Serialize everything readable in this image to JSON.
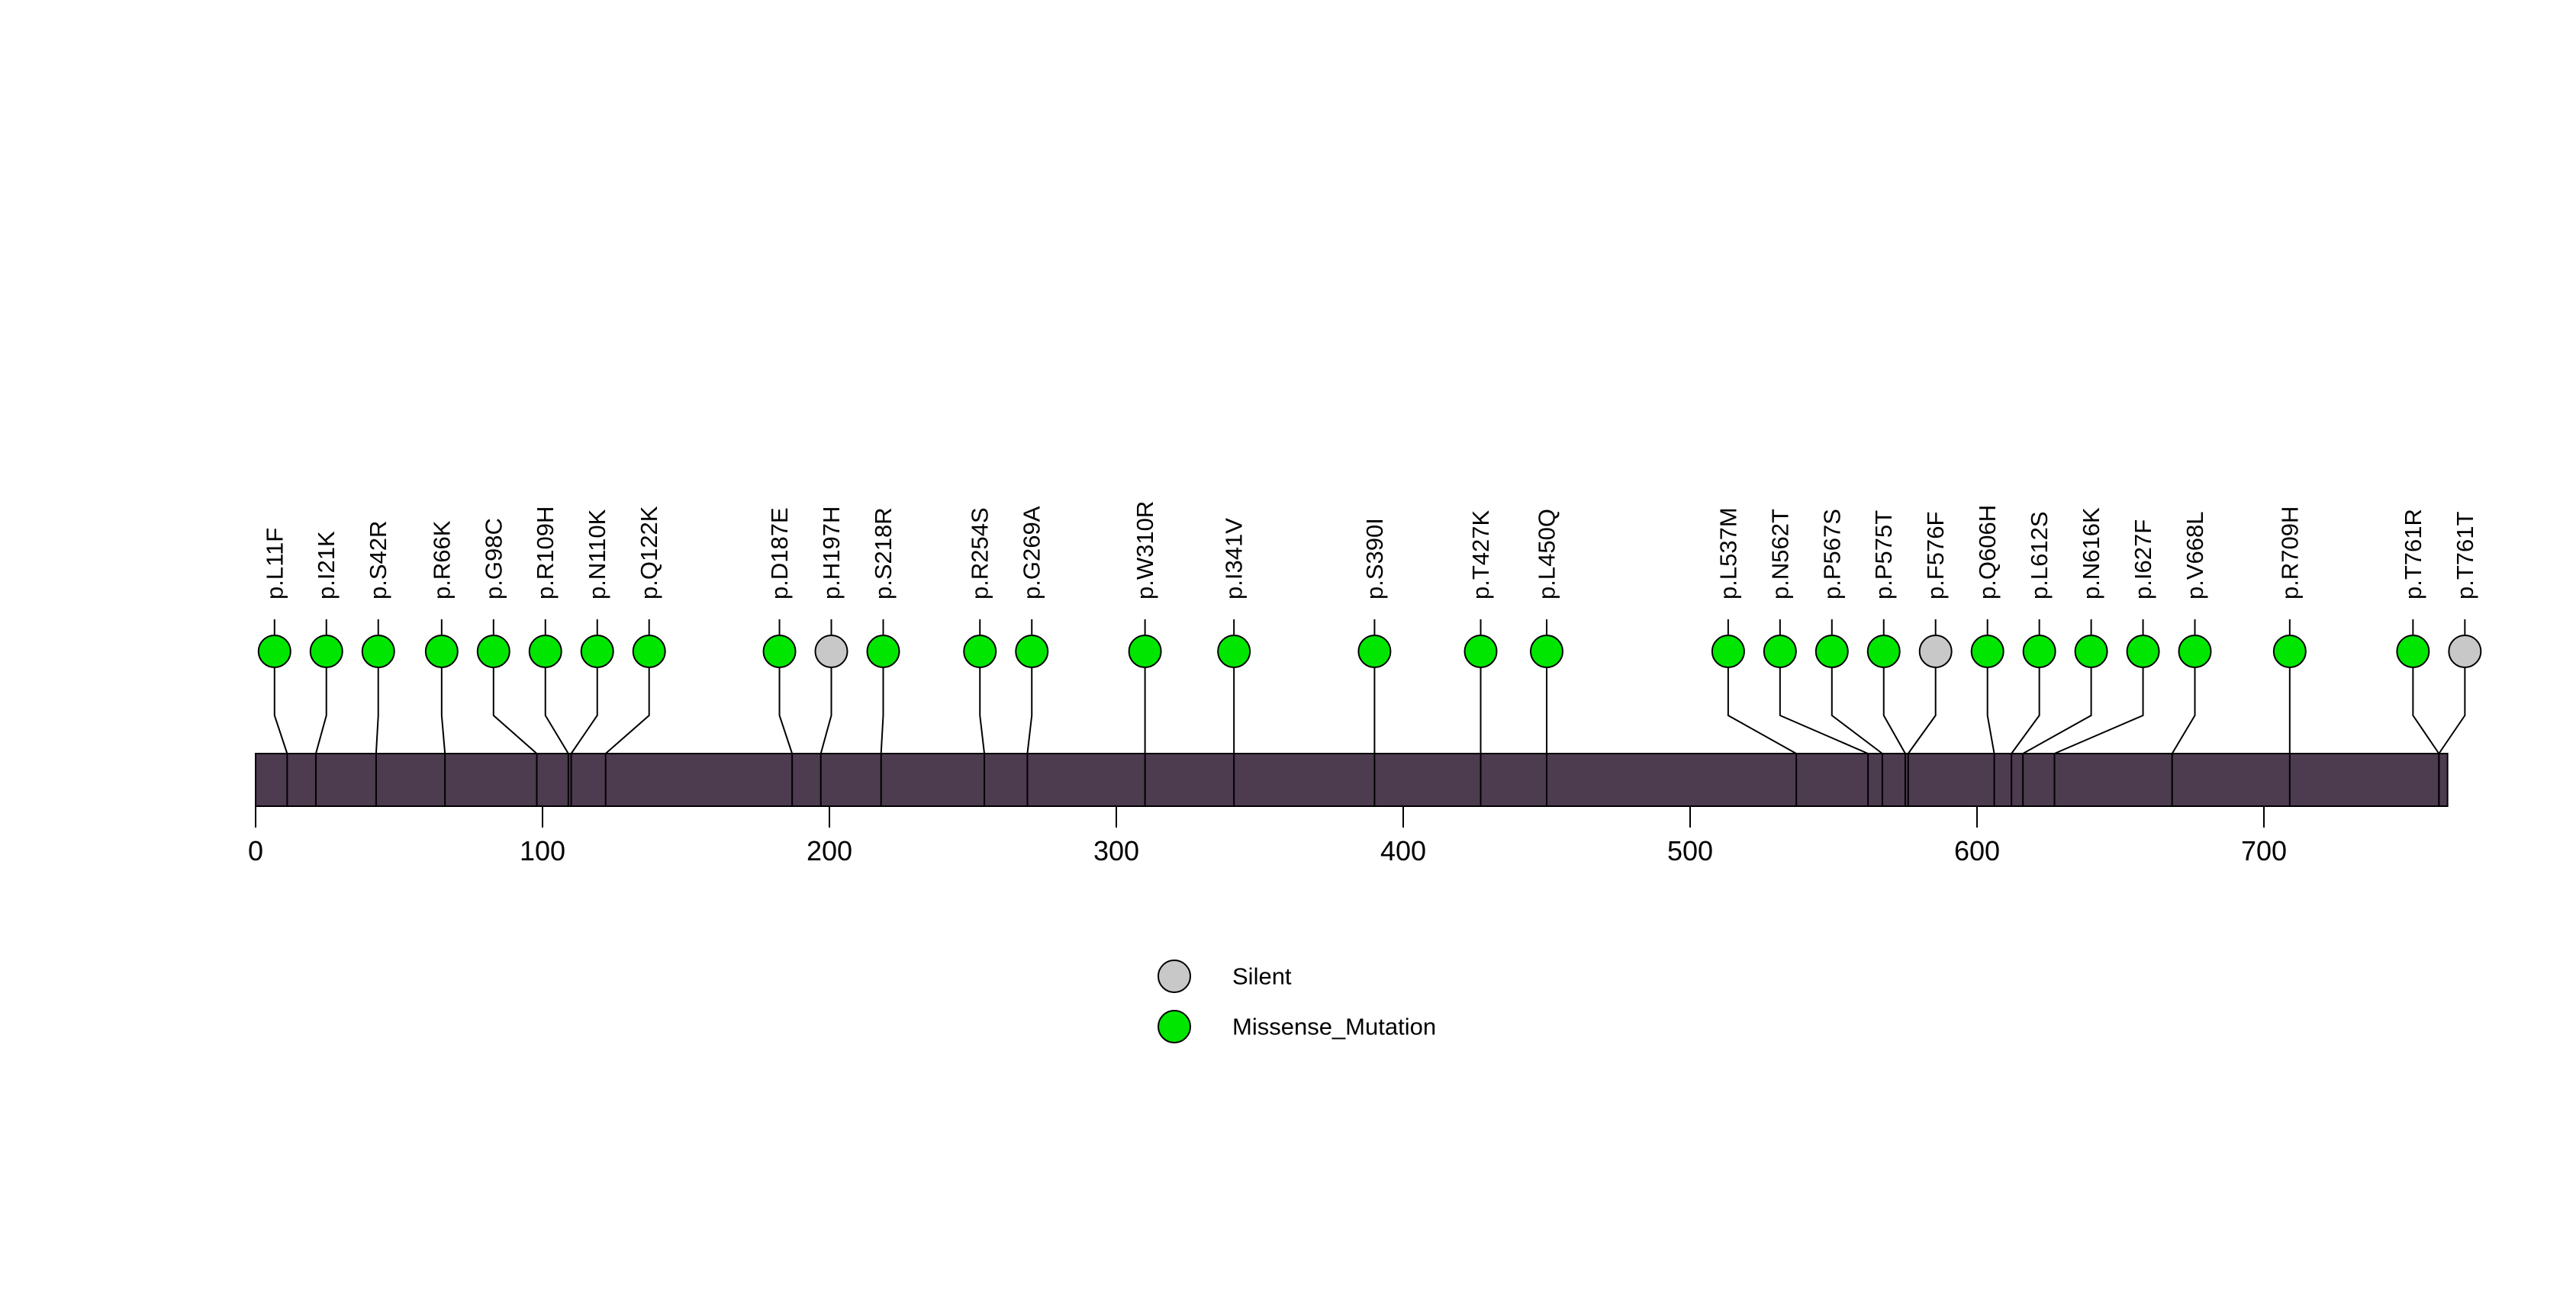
{
  "chart_data": {
    "type": "lollipop",
    "title": "",
    "protein": {
      "length_aa": 764,
      "backbone_color": "#4D3B50",
      "backbone_outline": "#000000"
    },
    "axis": {
      "ticks": [
        0,
        100,
        200,
        300,
        400,
        500,
        600,
        700
      ],
      "range": [
        0,
        764
      ],
      "grid": false
    },
    "colors": {
      "Missense_Mutation": "#00E600",
      "Silent": "#C8C8C8",
      "stem": "#000000",
      "text": "#000000"
    },
    "legend": {
      "position": "bottom-center",
      "items": [
        {
          "label": "Silent",
          "color": "#C8C8C8"
        },
        {
          "label": "Missense_Mutation",
          "color": "#00E600"
        }
      ]
    },
    "mutations": [
      {
        "label": "p.L11F",
        "pos": 11,
        "type": "Missense_Mutation"
      },
      {
        "label": "p.I21K",
        "pos": 21,
        "type": "Missense_Mutation"
      },
      {
        "label": "p.S42R",
        "pos": 42,
        "type": "Missense_Mutation"
      },
      {
        "label": "p.R66K",
        "pos": 66,
        "type": "Missense_Mutation"
      },
      {
        "label": "p.G98C",
        "pos": 98,
        "type": "Missense_Mutation"
      },
      {
        "label": "p.R109H",
        "pos": 109,
        "type": "Missense_Mutation"
      },
      {
        "label": "p.N110K",
        "pos": 110,
        "type": "Missense_Mutation"
      },
      {
        "label": "p.Q122K",
        "pos": 122,
        "type": "Missense_Mutation"
      },
      {
        "label": "p.D187E",
        "pos": 187,
        "type": "Missense_Mutation"
      },
      {
        "label": "p.H197H",
        "pos": 197,
        "type": "Silent"
      },
      {
        "label": "p.S218R",
        "pos": 218,
        "type": "Missense_Mutation"
      },
      {
        "label": "p.R254S",
        "pos": 254,
        "type": "Missense_Mutation"
      },
      {
        "label": "p.G269A",
        "pos": 269,
        "type": "Missense_Mutation"
      },
      {
        "label": "p.W310R",
        "pos": 310,
        "type": "Missense_Mutation"
      },
      {
        "label": "p.I341V",
        "pos": 341,
        "type": "Missense_Mutation"
      },
      {
        "label": "p.S390I",
        "pos": 390,
        "type": "Missense_Mutation"
      },
      {
        "label": "p.T427K",
        "pos": 427,
        "type": "Missense_Mutation"
      },
      {
        "label": "p.L450Q",
        "pos": 450,
        "type": "Missense_Mutation"
      },
      {
        "label": "p.L537M",
        "pos": 537,
        "type": "Missense_Mutation"
      },
      {
        "label": "p.N562T",
        "pos": 562,
        "type": "Missense_Mutation"
      },
      {
        "label": "p.P567S",
        "pos": 567,
        "type": "Missense_Mutation"
      },
      {
        "label": "p.P575T",
        "pos": 575,
        "type": "Missense_Mutation"
      },
      {
        "label": "p.F576F",
        "pos": 576,
        "type": "Silent"
      },
      {
        "label": "p.Q606H",
        "pos": 606,
        "type": "Missense_Mutation"
      },
      {
        "label": "p.L612S",
        "pos": 612,
        "type": "Missense_Mutation"
      },
      {
        "label": "p.N616K",
        "pos": 616,
        "type": "Missense_Mutation"
      },
      {
        "label": "p.I627F",
        "pos": 627,
        "type": "Missense_Mutation"
      },
      {
        "label": "p.V668L",
        "pos": 668,
        "type": "Missense_Mutation"
      },
      {
        "label": "p.R709H",
        "pos": 709,
        "type": "Missense_Mutation"
      },
      {
        "label": "p.T761R",
        "pos": 761,
        "type": "Missense_Mutation"
      },
      {
        "label": "p.T761T",
        "pos": 761,
        "type": "Silent"
      }
    ]
  }
}
